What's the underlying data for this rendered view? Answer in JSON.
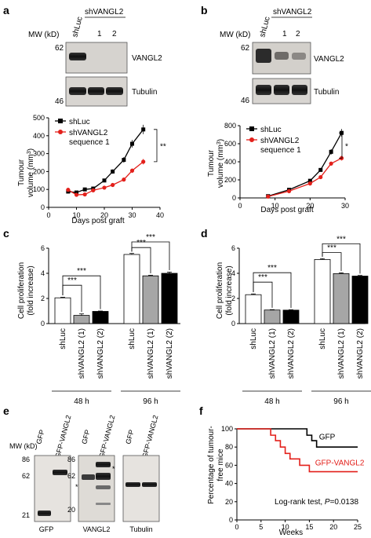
{
  "panels": {
    "a": {
      "letter": "a",
      "blot": {
        "group": "shVANGL2",
        "mw_label": "MW (kD)",
        "lanes": [
          "shLuc",
          "1",
          "2"
        ],
        "mw_top": "62",
        "mw_bottom": "46",
        "band_labels": [
          "VANGL2",
          "Tubulin"
        ]
      }
    },
    "b": {
      "letter": "b",
      "blot": {
        "group": "shVANGL2",
        "mw_label": "MW (kD)",
        "lanes": [
          "shLuc",
          "1",
          "2"
        ],
        "mw_top": "62",
        "mw_bottom": "46",
        "band_labels": [
          "VANGL2",
          "Tubulin"
        ]
      }
    },
    "c": {
      "letter": "c",
      "groups": [
        "48 h",
        "96 h"
      ]
    },
    "d": {
      "letter": "d",
      "groups": [
        "48 h",
        "96 h"
      ]
    },
    "e": {
      "letter": "e",
      "mw_label": "MW (kD)",
      "lanes": [
        "GFP",
        "GFP-VANGL2"
      ],
      "blots": [
        {
          "name": "GFP",
          "markers": [
            "86",
            "62",
            "21"
          ]
        },
        {
          "name": "VANGL2",
          "markers": [
            "86",
            "62",
            "20"
          ],
          "star": "*"
        },
        {
          "name": "Tubulin",
          "markers": []
        }
      ],
      "left_star": "*"
    },
    "f": {
      "letter": "f",
      "annotation_prefix": "Log-rank test, ",
      "annotation_p": "P",
      "annotation_value": "=0.0138"
    }
  },
  "colors": {
    "red": "#e3201b",
    "black": "#000000",
    "gray": "#a6a6a6"
  },
  "chart_data": [
    {
      "panel": "a",
      "type": "line",
      "xlabel": "Days post graft",
      "ylabel": "Tumour volume (mm³)",
      "xlim": [
        0,
        40
      ],
      "ylim": [
        0,
        500
      ],
      "xticks": [
        0,
        10,
        20,
        30,
        40
      ],
      "yticks": [
        0,
        100,
        200,
        300,
        400,
        500
      ],
      "significance": "**",
      "series": [
        {
          "name": "shLuc",
          "color": "#000000",
          "marker": "square",
          "x": [
            7,
            10,
            13,
            16,
            20,
            23,
            27,
            30,
            34
          ],
          "y": [
            88,
            83,
            100,
            105,
            150,
            200,
            265,
            355,
            435
          ]
        },
        {
          "name": "shVANGL2 sequence 1",
          "color": "#e3201b",
          "marker": "circle",
          "x": [
            7,
            10,
            13,
            16,
            20,
            23,
            27,
            30,
            34
          ],
          "y": [
            98,
            70,
            72,
            95,
            110,
            125,
            155,
            205,
            255
          ]
        }
      ],
      "legend": [
        "shLuc",
        "shVANGL2",
        "sequence 1"
      ]
    },
    {
      "panel": "b",
      "type": "line",
      "xlabel": "Days post graft",
      "ylabel": "Tumour volume (mm³)",
      "xlim": [
        0,
        30
      ],
      "ylim": [
        0,
        800
      ],
      "xticks": [
        0,
        10,
        20,
        30
      ],
      "yticks": [
        0,
        200,
        400,
        600,
        800
      ],
      "significance": "*",
      "series": [
        {
          "name": "shLuc",
          "color": "#000000",
          "marker": "square",
          "x": [
            8,
            14,
            20,
            23,
            26,
            29
          ],
          "y": [
            20,
            90,
            190,
            310,
            510,
            720
          ]
        },
        {
          "name": "shVANGL2 sequence 1",
          "color": "#e3201b",
          "marker": "circle",
          "x": [
            8,
            14,
            20,
            23,
            26,
            29
          ],
          "y": [
            15,
            75,
            160,
            230,
            380,
            440
          ]
        }
      ],
      "legend": [
        "shLuc",
        "shVANGL2",
        "sequence 1"
      ]
    },
    {
      "panel": "c",
      "type": "bar",
      "ylabel": "Cell proliferation (fold increase)",
      "ylim": [
        0,
        6
      ],
      "yticks": [
        0,
        2,
        4,
        6
      ],
      "categories": [
        "shLuc",
        "shVANGL2 (1)",
        "shVANGL2 (2)",
        "shLuc",
        "shVANGL2 (1)",
        "shVANGL2 (2)"
      ],
      "values": [
        2.05,
        0.65,
        0.97,
        5.5,
        3.8,
        4.0
      ],
      "errors": [
        0.05,
        0.12,
        0.03,
        0.08,
        0.05,
        0.1
      ],
      "significance": [
        "***",
        "***",
        "***",
        "***"
      ]
    },
    {
      "panel": "d",
      "type": "bar",
      "ylabel": "Cell proliferation (fold increase)",
      "ylim": [
        0,
        6
      ],
      "yticks": [
        0,
        2,
        4,
        6
      ],
      "categories": [
        "shLuc",
        "shVANGL2 (1)",
        "shVANGL2 (2)",
        "shLuc",
        "shVANGL2 (1)",
        "shVANGL2 (2)"
      ],
      "values": [
        2.3,
        1.08,
        1.07,
        5.1,
        3.98,
        3.78
      ],
      "errors": [
        0.06,
        0.03,
        0.03,
        0.07,
        0.06,
        0.05
      ],
      "significance": [
        "***",
        "***",
        "***",
        "***"
      ]
    },
    {
      "panel": "f",
      "type": "line",
      "xlabel": "Weeks",
      "ylabel": "Percentage of tumour-free mice",
      "xlim": [
        0,
        25
      ],
      "ylim": [
        0,
        100
      ],
      "xticks": [
        0,
        5,
        10,
        15,
        20,
        25
      ],
      "yticks": [
        0,
        20,
        40,
        60,
        80,
        100
      ],
      "series": [
        {
          "name": "GFP",
          "color": "#000000",
          "x": [
            0,
            14.5,
            14.5,
            15.5,
            15.5,
            16.5,
            16.5,
            25
          ],
          "y": [
            100,
            100,
            93,
            93,
            87,
            87,
            80,
            80
          ]
        },
        {
          "name": "GFP-VANGL2",
          "color": "#e3201b",
          "x": [
            0,
            7,
            7,
            8,
            8,
            9,
            9,
            10,
            10,
            11,
            11,
            13,
            13,
            15,
            15,
            16,
            16,
            25
          ],
          "y": [
            100,
            100,
            93,
            93,
            87,
            87,
            80,
            80,
            73,
            73,
            67,
            67,
            60,
            60,
            53,
            53,
            53,
            53
          ]
        }
      ]
    }
  ]
}
